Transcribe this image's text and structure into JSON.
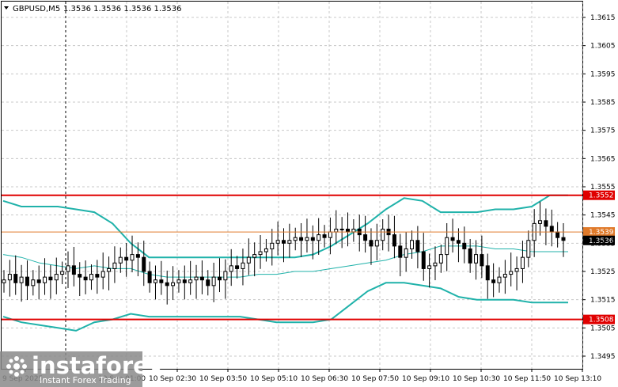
{
  "header": {
    "symbol_label": "GBPUSD,M5",
    "ohlc_label": "1.3536 1.3536 1.3536 1.3536"
  },
  "watermark": {
    "brand": "instaforex",
    "tagline": "Instant Forex Trading"
  },
  "colors": {
    "background": "#ffffff",
    "grid": "#c8c8c8",
    "candle": "#000000",
    "bollinger": "#20b2aa",
    "level": "#e00000",
    "current_price_line": "#e07a2a",
    "current_badge": "#000000"
  },
  "price_axis": {
    "labels": [
      "1.3615",
      "1.3605",
      "1.3595",
      "1.3585",
      "1.3575",
      "1.3565",
      "1.3555",
      "1.3545",
      "1.3535",
      "1.3525",
      "1.3515",
      "1.3505",
      "1.3495"
    ]
  },
  "time_axis": {
    "labels": [
      "9 Sep 2025",
      "10 Sep 01:00",
      "10 Sep 02:30",
      "10 Sep 03:50",
      "10 Sep 05:10",
      "10 Sep 06:30",
      "10 Sep 07:50",
      "10 Sep 09:10",
      "10 Sep 10:30",
      "10 Sep 11:50",
      "10 Sep 13:10"
    ]
  },
  "levels": {
    "upper": "1.3552",
    "lower": "1.3508",
    "orange": "1.3539",
    "current": "1.3536"
  },
  "chart_data": {
    "type": "candlestick",
    "symbol": "GBPUSD",
    "timeframe": "M5",
    "ylim": [
      1.349,
      1.3619
    ],
    "horizontal_levels": [
      {
        "value": 1.3552,
        "color": "red"
      },
      {
        "value": 1.3508,
        "color": "red"
      },
      {
        "value": 1.3539,
        "color": "orange"
      }
    ],
    "last_price": 1.3536,
    "close": [
      1.3522,
      1.3524,
      1.3521,
      1.3523,
      1.352,
      1.3522,
      1.3521,
      1.3523,
      1.3522,
      1.3524,
      1.3525,
      1.3527,
      1.3524,
      1.3523,
      1.3522,
      1.3524,
      1.3523,
      1.3525,
      1.3526,
      1.3528,
      1.353,
      1.3529,
      1.3531,
      1.353,
      1.3525,
      1.3521,
      1.3522,
      1.3521,
      1.352,
      1.3521,
      1.3522,
      1.3521,
      1.3522,
      1.3523,
      1.3522,
      1.352,
      1.3523,
      1.3522,
      1.3525,
      1.3527,
      1.3526,
      1.3528,
      1.353,
      1.3531,
      1.3532,
      1.3533,
      1.3535,
      1.3536,
      1.3535,
      1.3536,
      1.3537,
      1.3536,
      1.3537,
      1.3536,
      1.3538,
      1.3537,
      1.3539,
      1.354,
      1.354,
      1.3539,
      1.354,
      1.3538,
      1.3536,
      1.3534,
      1.3536,
      1.354,
      1.3538,
      1.3534,
      1.353,
      1.3533,
      1.3536,
      1.3532,
      1.3526,
      1.3527,
      1.3528,
      1.3531,
      1.3537,
      1.3536,
      1.3535,
      1.3533,
      1.3528,
      1.3531,
      1.3527,
      1.3522,
      1.3521,
      1.3523,
      1.3524,
      1.3525,
      1.3526,
      1.353,
      1.3536,
      1.3542,
      1.3543,
      1.3541,
      1.3539,
      1.3537,
      1.3536
    ],
    "upper_band": [
      1.355,
      1.3548,
      1.3548,
      1.3548,
      1.3547,
      1.3546,
      1.3542,
      1.3535,
      1.353,
      1.353,
      1.353,
      1.353,
      1.353,
      1.353,
      1.353,
      1.353,
      1.353,
      1.3531,
      1.3534,
      1.3538,
      1.3542,
      1.3547,
      1.3551,
      1.355,
      1.3546,
      1.3546,
      1.3546,
      1.3547,
      1.3547,
      1.3548,
      1.3552,
      1.3552
    ],
    "middle_band": [
      1.3531,
      1.353,
      1.3528,
      1.3527,
      1.3526,
      1.3527,
      1.3526,
      1.3526,
      1.3524,
      1.3523,
      1.3523,
      1.3523,
      1.3523,
      1.3523,
      1.3524,
      1.3524,
      1.3525,
      1.3525,
      1.3526,
      1.3527,
      1.3528,
      1.3529,
      1.3531,
      1.3532,
      1.3534,
      1.3534,
      1.3534,
      1.3533,
      1.3533,
      1.3532,
      1.3532,
      1.3532
    ],
    "lower_band": [
      1.3509,
      1.3507,
      1.3506,
      1.3505,
      1.3504,
      1.3507,
      1.3508,
      1.351,
      1.3509,
      1.3509,
      1.3509,
      1.3509,
      1.3509,
      1.3509,
      1.3508,
      1.3507,
      1.3507,
      1.3507,
      1.3508,
      1.3513,
      1.3518,
      1.3521,
      1.3521,
      1.352,
      1.3519,
      1.3516,
      1.3515,
      1.3515,
      1.3515,
      1.3514,
      1.3514,
      1.3514
    ]
  }
}
